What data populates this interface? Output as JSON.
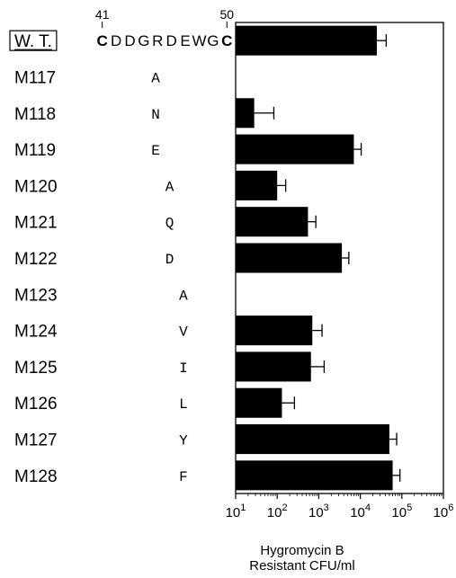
{
  "chart_data": {
    "type": "bar",
    "orientation": "horizontal",
    "xscale": "log",
    "xlim": [
      10,
      1000000
    ],
    "xticks": [
      10,
      100,
      1000,
      10000,
      100000,
      1000000
    ],
    "xtick_labels": [
      {
        "base": "10",
        "exp": "1"
      },
      {
        "base": "10",
        "exp": "2"
      },
      {
        "base": "10",
        "exp": "3"
      },
      {
        "base": "10",
        "exp": "4"
      },
      {
        "base": "10",
        "exp": "5"
      },
      {
        "base": "10",
        "exp": "6"
      }
    ],
    "xlabel": [
      "Hygromycin B",
      "Resistant CFU/ml"
    ],
    "sequence": {
      "start_pos": "41",
      "end_pos": "50",
      "first_residue": "C",
      "middle": "DDGRDEWG",
      "last_residue": "C"
    },
    "categories": [
      "W. T.",
      "M117",
      "M118",
      "M119",
      "M120",
      "M121",
      "M122",
      "M123",
      "M124",
      "M125",
      "M126",
      "M127",
      "M128"
    ],
    "substitutions": [
      "",
      "A",
      "N",
      "E",
      "A",
      "Q",
      "D",
      "A",
      "V",
      "I",
      "L",
      "Y",
      "F"
    ],
    "substitution_residue_index": [
      null,
      1,
      1,
      1,
      2,
      2,
      2,
      3,
      3,
      3,
      3,
      3,
      3
    ],
    "values": [
      25000,
      null,
      28,
      7000,
      100,
      550,
      3600,
      null,
      700,
      650,
      130,
      50000,
      60000
    ],
    "error_plus": [
      17000,
      null,
      55,
      3500,
      60,
      300,
      1700,
      null,
      500,
      700,
      130,
      25000,
      30000
    ]
  }
}
